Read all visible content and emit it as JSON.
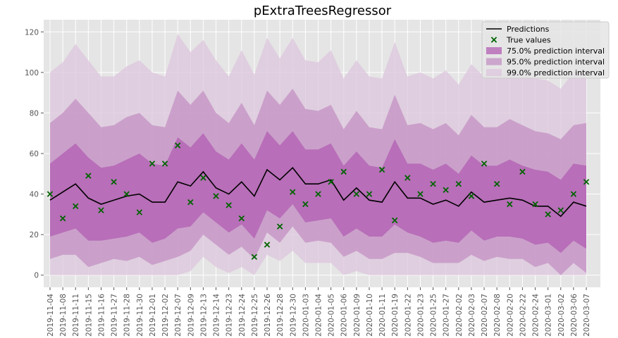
{
  "chart_data": {
    "type": "line",
    "title": "pExtraTreesRegressor",
    "xlabel": "",
    "ylabel": "",
    "ylim": [
      -6,
      126
    ],
    "yticks": [
      0,
      20,
      40,
      60,
      80,
      100,
      120
    ],
    "grid": true,
    "legend_position": "top-right",
    "categories": [
      "2019-11-04",
      "2019-11-08",
      "2019-11-11",
      "2019-11-15",
      "2019-11-16",
      "2019-11-27",
      "2019-11-28",
      "2019-11-30",
      "2019-12-01",
      "2019-12-02",
      "2019-12-07",
      "2019-12-09",
      "2019-12-13",
      "2019-12-14",
      "2019-12-23",
      "2019-12-24",
      "2019-12-25",
      "2019-12-26",
      "2019-12-28",
      "2019-12-30",
      "2020-01-03",
      "2020-01-04",
      "2020-01-05",
      "2020-01-06",
      "2020-01-09",
      "2020-01-10",
      "2020-01-11",
      "2020-01-19",
      "2020-01-22",
      "2020-01-23",
      "2020-01-25",
      "2020-01-27",
      "2020-02-02",
      "2020-02-03",
      "2020-02-07",
      "2020-02-08",
      "2020-02-20",
      "2020-02-22",
      "2020-02-24",
      "2020-03-01",
      "2020-03-02",
      "2020-03-06",
      "2020-03-07"
    ],
    "series": [
      {
        "name": "Predictions",
        "kind": "line",
        "color": "#000000",
        "values": [
          37,
          41,
          45,
          38,
          35,
          37,
          39,
          40,
          36,
          36,
          46,
          44,
          51,
          43,
          40,
          46,
          39,
          52,
          47,
          53,
          45,
          45,
          47,
          37,
          43,
          37,
          36,
          46,
          38,
          38,
          35,
          37,
          34,
          41,
          36,
          37,
          38,
          37,
          34,
          34,
          29,
          36,
          34
        ]
      },
      {
        "name": "True values",
        "kind": "scatter",
        "color": "#006400",
        "values": [
          40,
          28,
          34,
          49,
          32,
          46,
          40,
          31,
          55,
          55,
          64,
          36,
          48,
          39,
          34.5,
          28,
          9,
          15,
          24,
          41,
          35,
          40,
          46,
          51,
          40,
          40,
          52,
          27,
          48,
          40,
          45,
          42,
          45,
          39,
          55,
          45,
          35,
          51,
          35,
          30,
          32,
          40,
          46
        ]
      },
      {
        "name": "75.0% prediction interval",
        "kind": "band",
        "color": "#b15db1",
        "lower": [
          19,
          21,
          23,
          17,
          17,
          18,
          19,
          21,
          16,
          18,
          23,
          24,
          31,
          26,
          21,
          25,
          18,
          32,
          28,
          35,
          26,
          27,
          28,
          19,
          23,
          19,
          19,
          25,
          21,
          19,
          16,
          17,
          16,
          22,
          17,
          19,
          19,
          18,
          15,
          16,
          11,
          17,
          13
        ],
        "upper": [
          55,
          60,
          65,
          58,
          53,
          54,
          57,
          60,
          55,
          54,
          68,
          63,
          70,
          61,
          57,
          65,
          57,
          71,
          64,
          71,
          62,
          62,
          65,
          54,
          61,
          54,
          53,
          67,
          55,
          55,
          52,
          55,
          50,
          59,
          54,
          54,
          57,
          54,
          52,
          51,
          47,
          55,
          54
        ]
      },
      {
        "name": "95.0% prediction interval",
        "kind": "band",
        "color": "#c390c3",
        "lower": [
          8,
          10,
          10,
          4,
          6,
          8,
          7,
          9,
          5,
          7,
          9,
          12,
          20,
          15,
          10,
          14,
          8,
          21,
          16,
          24,
          16,
          17,
          16,
          9,
          12,
          8,
          8,
          11,
          11,
          9,
          6,
          6,
          6,
          10,
          7,
          9,
          8,
          8,
          4,
          6,
          0,
          6,
          1
        ],
        "upper": [
          75,
          80,
          87,
          80,
          73,
          74,
          78,
          80,
          74,
          73,
          91,
          84,
          91,
          80,
          75,
          85,
          74,
          91,
          84,
          92,
          82,
          81,
          84,
          72,
          81,
          73,
          72,
          89,
          74,
          75,
          72,
          75,
          69,
          79,
          73,
          73,
          77,
          74,
          71,
          70,
          67,
          74,
          75
        ]
      },
      {
        "name": "99.0% prediction interval",
        "kind": "band",
        "color": "#dcc6dc",
        "lower": [
          0,
          0,
          0,
          0,
          0,
          0,
          0,
          0,
          0,
          0,
          0,
          2,
          9,
          4,
          1,
          4,
          0,
          10,
          7,
          12,
          6,
          6,
          6,
          0,
          2,
          0,
          0,
          0,
          0,
          0,
          0,
          0,
          0,
          0,
          0,
          0,
          0,
          0,
          0,
          0,
          0,
          0,
          0
        ],
        "upper": [
          100,
          105,
          114,
          106,
          98,
          98,
          103,
          106,
          100,
          98,
          119,
          110,
          116,
          106,
          98,
          111,
          99,
          117,
          107,
          117,
          106,
          105,
          111,
          97,
          106,
          98,
          97,
          115,
          98,
          100,
          97,
          101,
          94,
          104,
          98,
          98,
          102,
          98,
          97,
          96,
          92,
          100,
          101
        ]
      }
    ]
  }
}
